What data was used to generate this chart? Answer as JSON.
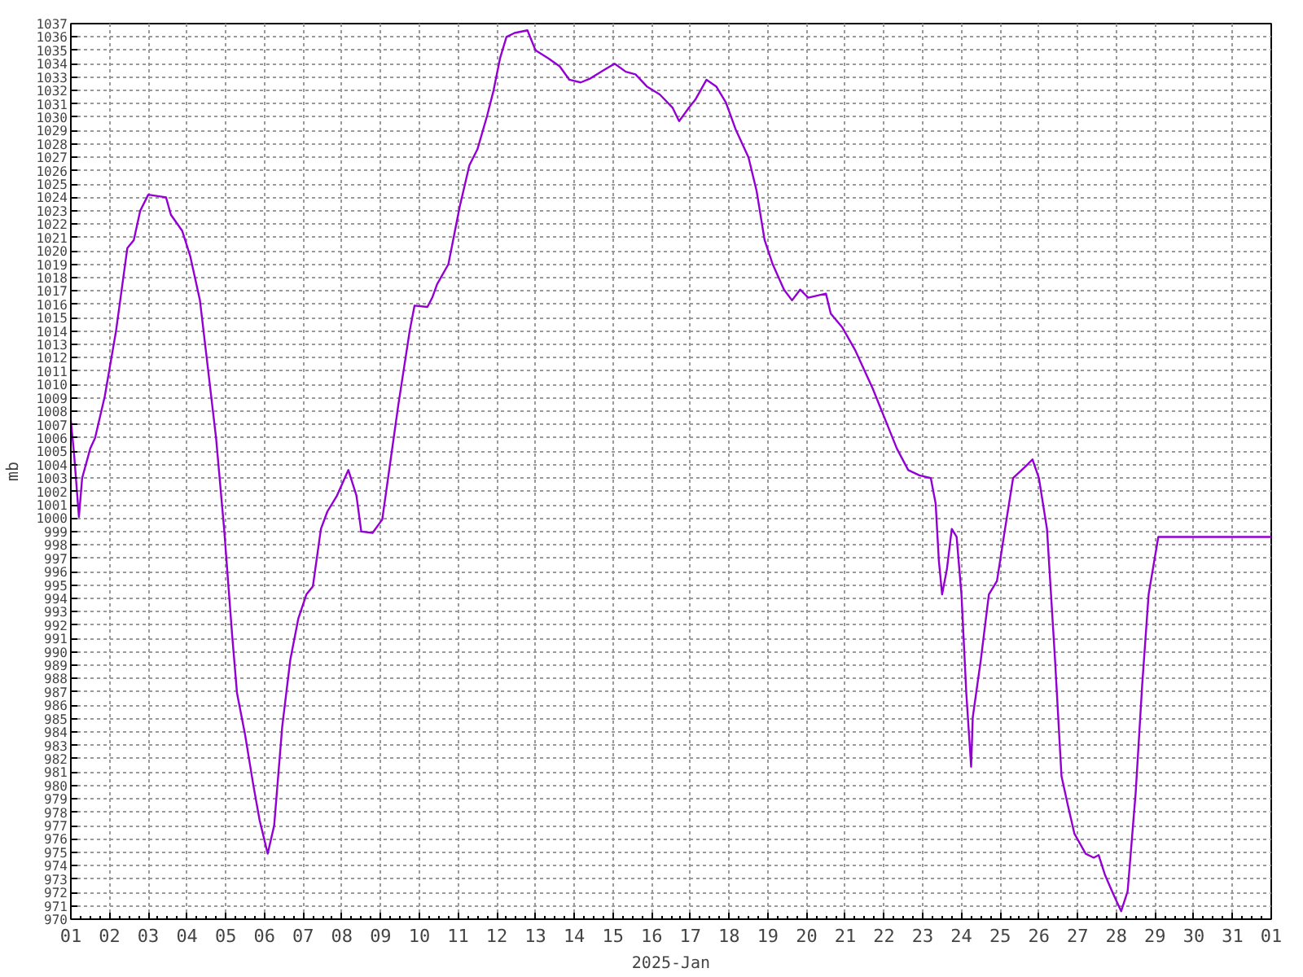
{
  "chart_data": {
    "type": "line",
    "xlabel": "2025-Jan",
    "ylabel": "mb",
    "grid": true,
    "line_style": "solid",
    "xlim": [
      "2025-01-01",
      "2025-02-01"
    ],
    "ylim": [
      970,
      1037
    ],
    "xticks": [
      {
        "value": "2025-01-01",
        "label": "01"
      },
      {
        "value": "2025-01-02",
        "label": "02"
      },
      {
        "value": "2025-01-03",
        "label": "03"
      },
      {
        "value": "2025-01-04",
        "label": "04"
      },
      {
        "value": "2025-01-05",
        "label": "05"
      },
      {
        "value": "2025-01-06",
        "label": "06"
      },
      {
        "value": "2025-01-07",
        "label": "07"
      },
      {
        "value": "2025-01-08",
        "label": "08"
      },
      {
        "value": "2025-01-09",
        "label": "09"
      },
      {
        "value": "2025-01-10",
        "label": "10"
      },
      {
        "value": "2025-01-11",
        "label": "11"
      },
      {
        "value": "2025-01-12",
        "label": "12"
      },
      {
        "value": "2025-01-13",
        "label": "13"
      },
      {
        "value": "2025-01-14",
        "label": "14"
      },
      {
        "value": "2025-01-15",
        "label": "15"
      },
      {
        "value": "2025-01-16",
        "label": "16"
      },
      {
        "value": "2025-01-17",
        "label": "17"
      },
      {
        "value": "2025-01-18",
        "label": "18"
      },
      {
        "value": "2025-01-19",
        "label": "19"
      },
      {
        "value": "2025-01-20",
        "label": "20"
      },
      {
        "value": "2025-01-21",
        "label": "21"
      },
      {
        "value": "2025-01-22",
        "label": "22"
      },
      {
        "value": "2025-01-23",
        "label": "23"
      },
      {
        "value": "2025-01-24",
        "label": "24"
      },
      {
        "value": "2025-01-25",
        "label": "25"
      },
      {
        "value": "2025-01-26",
        "label": "26"
      },
      {
        "value": "2025-01-27",
        "label": "27"
      },
      {
        "value": "2025-01-28",
        "label": "28"
      },
      {
        "value": "2025-01-29",
        "label": "29"
      },
      {
        "value": "2025-01-30",
        "label": "30"
      },
      {
        "value": "2025-01-31",
        "label": "31"
      },
      {
        "value": "2025-02-01",
        "label": "01"
      }
    ],
    "yticks": [
      970,
      971,
      972,
      973,
      974,
      975,
      976,
      977,
      978,
      979,
      980,
      981,
      982,
      983,
      984,
      985,
      986,
      987,
      988,
      989,
      990,
      991,
      992,
      993,
      994,
      995,
      996,
      997,
      998,
      999,
      1000,
      1001,
      1002,
      1003,
      1004,
      1005,
      1006,
      1007,
      1008,
      1009,
      1010,
      1011,
      1012,
      1013,
      1014,
      1015,
      1016,
      1017,
      1018,
      1019,
      1020,
      1021,
      1022,
      1023,
      1024,
      1025,
      1026,
      1027,
      1028,
      1029,
      1030,
      1031,
      1032,
      1033,
      1034,
      1035,
      1036,
      1037
    ],
    "series": [
      {
        "color": "#9400d3",
        "x": [
          "2025-01-01T00:00",
          "2025-01-01T02:00",
          "2025-01-01T05:00",
          "2025-01-01T07:00",
          "2025-01-01T12:00",
          "2025-01-01T15:00",
          "2025-01-01T21:00",
          "2025-01-02T04:00",
          "2025-01-02T11:00",
          "2025-01-02T15:00",
          "2025-01-02T19:00",
          "2025-01-03T00:00",
          "2025-01-03T11:00",
          "2025-01-03T14:00",
          "2025-01-03T21:00",
          "2025-01-04T02:00",
          "2025-01-04T08:00",
          "2025-01-04T12:00",
          "2025-01-04T18:00",
          "2025-01-04T23:00",
          "2025-01-05T04:00",
          "2025-01-05T07:00",
          "2025-01-05T12:00",
          "2025-01-05T17:00",
          "2025-01-05T21:00",
          "2025-01-06T02:00",
          "2025-01-06T06:00",
          "2025-01-06T11:00",
          "2025-01-06T16:00",
          "2025-01-06T21:00",
          "2025-01-07T02:00",
          "2025-01-07T06:00",
          "2025-01-07T11:00",
          "2025-01-07T15:00",
          "2025-01-07T21:00",
          "2025-01-08T04:00",
          "2025-01-08T09:00",
          "2025-01-08T12:00",
          "2025-01-08T19:00",
          "2025-01-09T01:00",
          "2025-01-09T06:00",
          "2025-01-09T11:00",
          "2025-01-09T18:00",
          "2025-01-09T21:00",
          "2025-01-10T05:00",
          "2025-01-10T08:00",
          "2025-01-10T11:00",
          "2025-01-10T18:00",
          "2025-01-11T01:00",
          "2025-01-11T07:00",
          "2025-01-11T12:00",
          "2025-01-11T18:00",
          "2025-01-11T22:00",
          "2025-01-12T02:00",
          "2025-01-12T06:00",
          "2025-01-12T11:00",
          "2025-01-12T19:00",
          "2025-01-13T00:00",
          "2025-01-13T08:00",
          "2025-01-13T15:00",
          "2025-01-13T21:00",
          "2025-01-14T04:00",
          "2025-01-14T10:00",
          "2025-01-14T18:00",
          "2025-01-15T01:00",
          "2025-01-15T08:00",
          "2025-01-15T14:00",
          "2025-01-15T21:00",
          "2025-01-16T05:00",
          "2025-01-16T13:00",
          "2025-01-16T17:00",
          "2025-01-16T23:00",
          "2025-01-17T03:00",
          "2025-01-17T10:00",
          "2025-01-17T16:00",
          "2025-01-17T22:00",
          "2025-01-18T04:00",
          "2025-01-18T12:00",
          "2025-01-18T17:00",
          "2025-01-18T22:00",
          "2025-01-19T03:00",
          "2025-01-19T10:00",
          "2025-01-19T15:00",
          "2025-01-19T20:00",
          "2025-01-20T01:00",
          "2025-01-20T12:00",
          "2025-01-20T15:00",
          "2025-01-20T22:00",
          "2025-01-21T06:00",
          "2025-01-21T17:00",
          "2025-01-22T01:00",
          "2025-01-22T08:00",
          "2025-01-22T15:00",
          "2025-01-22T22:00",
          "2025-01-23T05:00",
          "2025-01-23T08:00",
          "2025-01-23T10:00",
          "2025-01-23T12:00",
          "2025-01-23T15:00",
          "2025-01-23T18:00",
          "2025-01-23T21:00",
          "2025-01-24T00:00",
          "2025-01-24T03:00",
          "2025-01-24T06:00",
          "2025-01-24T07:00",
          "2025-01-24T12:00",
          "2025-01-24T17:00",
          "2025-01-24T22:00",
          "2025-01-25T03:00",
          "2025-01-25T08:00",
          "2025-01-25T16:00",
          "2025-01-25T20:00",
          "2025-01-26T00:00",
          "2025-01-26T05:00",
          "2025-01-26T10:00",
          "2025-01-26T14:00",
          "2025-01-26T18:00",
          "2025-01-26T22:00",
          "2025-01-27T05:00",
          "2025-01-27T10:00",
          "2025-01-27T13:00",
          "2025-01-27T17:00",
          "2025-01-27T22:00",
          "2025-01-28T03:00",
          "2025-01-28T07:00",
          "2025-01-28T12:00",
          "2025-01-28T16:00",
          "2025-01-28T20:00",
          "2025-01-29T02:00",
          "2025-02-01T00:00"
        ],
        "values": [
          1007.3,
          1004.8,
          1000.1,
          1003,
          1005.2,
          1006,
          1009.1,
          1014,
          1020.2,
          1020.8,
          1023,
          1024.2,
          1024,
          1022.7,
          1021.5,
          1019.6,
          1016.3,
          1012.2,
          1006,
          999.2,
          991.2,
          986.9,
          983.8,
          980.1,
          977.4,
          974.9,
          977,
          984.4,
          989.4,
          992.5,
          994.3,
          994.9,
          999.2,
          1000.5,
          1001.7,
          1003.6,
          1001.7,
          999,
          998.9,
          999.9,
          1004.2,
          1008.5,
          1014,
          1015.9,
          1015.8,
          1016.5,
          1017.5,
          1019,
          1023.3,
          1026.4,
          1027.6,
          1030.1,
          1032,
          1034.4,
          1036,
          1036.3,
          1036.5,
          1035,
          1034.4,
          1033.8,
          1032.8,
          1032.6,
          1032.9,
          1033.5,
          1034,
          1033.4,
          1033.2,
          1032.3,
          1031.7,
          1030.7,
          1029.7,
          1030.7,
          1031.3,
          1032.8,
          1032.3,
          1031.1,
          1029.1,
          1027,
          1024.5,
          1020.8,
          1019,
          1017.1,
          1016.3,
          1017.1,
          1016.5,
          1016.8,
          1015.3,
          1014.3,
          1012.6,
          1009.7,
          1007.3,
          1005.2,
          1003.6,
          1003.2,
          1003,
          1001.1,
          996.8,
          994.3,
          996.2,
          999.2,
          998.6,
          994.3,
          986.9,
          981.4,
          985.1,
          989.4,
          994.3,
          995.3,
          999.2,
          1003,
          1003.9,
          1004.4,
          1003,
          999.2,
          989.4,
          980.7,
          978.5,
          976.4,
          974.9,
          974.6,
          974.8,
          973.3,
          971.9,
          970.6,
          972.1,
          979.5,
          987.5,
          994.3,
          998.6,
          998.6
        ]
      }
    ]
  }
}
